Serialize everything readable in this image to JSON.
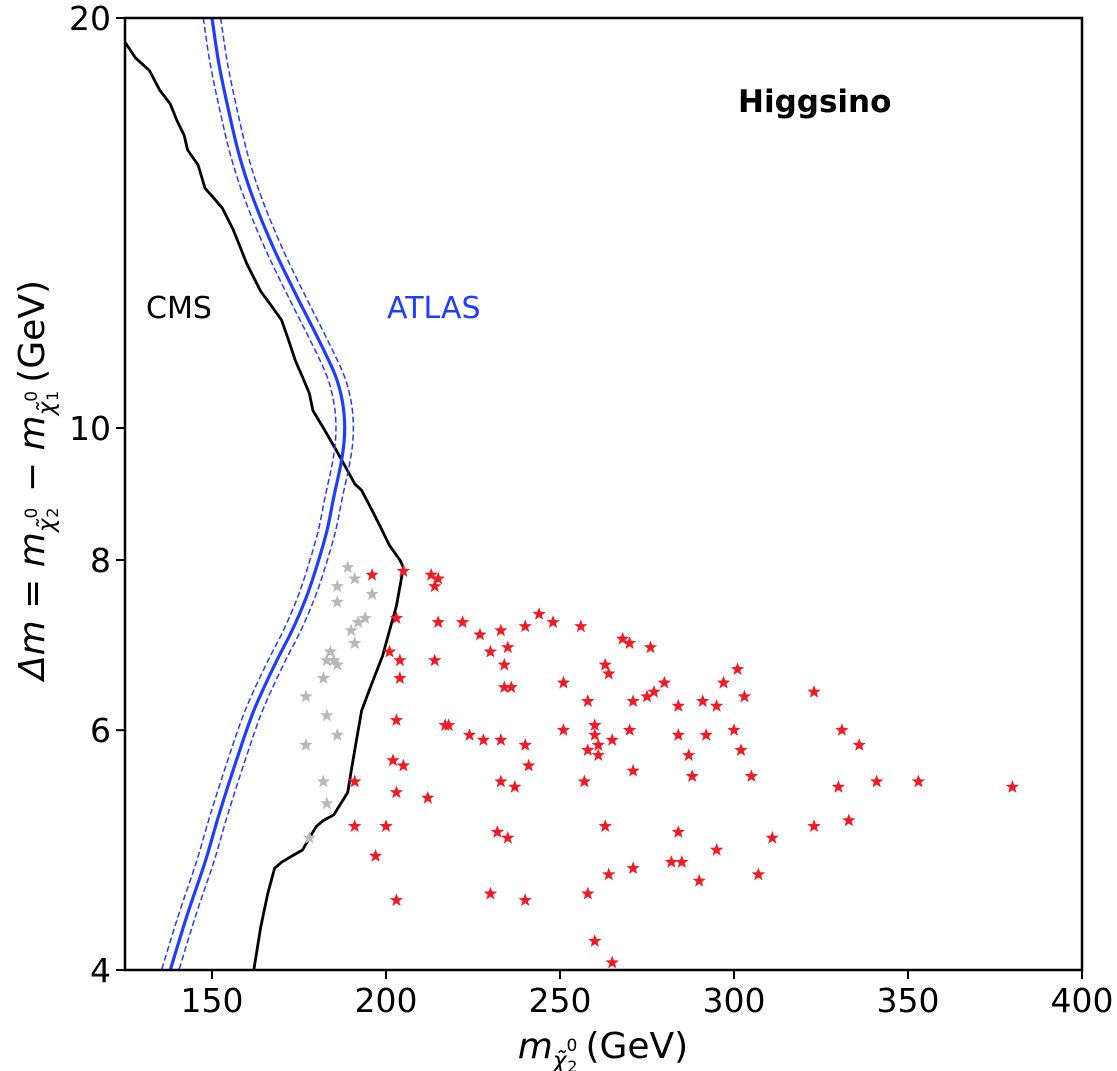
{
  "chart_data": {
    "type": "scatter",
    "title": "",
    "xlabel": {
      "main": "m",
      "sub": "χ̃",
      "sup": "0",
      "subsub": "2",
      "unit": "(GeV)"
    },
    "ylabel": {
      "text": "Δm = m",
      "sub1": "χ̃",
      "sup1": "0",
      "idx1": "2",
      "minus": " − m",
      "sub2": "χ̃",
      "sup2": "0",
      "idx2": "1",
      "unit": "(GeV)"
    },
    "xlim": [
      125,
      400
    ],
    "ylim": [
      4,
      20
    ],
    "yscale": "log",
    "xticks": [
      "150",
      "200",
      "250",
      "300",
      "350",
      "400"
    ],
    "yticks": [
      "4",
      "6",
      "8",
      "10",
      "20"
    ],
    "grid": false,
    "annotations": {
      "higgsino": "Higgsino",
      "cms": "CMS",
      "atlas": "ATLAS"
    },
    "colors": {
      "cms": "#000000",
      "atlas": "#1f3cff",
      "allowed_points": "#ee1c25",
      "excluded_points": "#b8b8b8"
    },
    "series": [
      {
        "name": "CMS",
        "kind": "line",
        "points": [
          [
            125,
            19.2
          ],
          [
            128,
            18.7
          ],
          [
            132,
            18.3
          ],
          [
            135,
            17.7
          ],
          [
            138,
            17.3
          ],
          [
            140,
            16.8
          ],
          [
            142,
            16.4
          ],
          [
            143,
            16.0
          ],
          [
            146,
            15.6
          ],
          [
            148,
            15.0
          ],
          [
            150,
            14.8
          ],
          [
            153,
            14.5
          ],
          [
            156,
            14.0
          ],
          [
            158,
            13.6
          ],
          [
            160,
            13.2
          ],
          [
            164,
            12.6
          ],
          [
            167,
            12.3
          ],
          [
            170,
            12.0
          ],
          [
            172,
            11.6
          ],
          [
            174,
            11.2
          ],
          [
            176,
            10.9
          ],
          [
            178,
            10.6
          ],
          [
            179,
            10.3
          ],
          [
            182,
            10.0
          ],
          [
            185,
            9.7
          ],
          [
            187,
            9.5
          ],
          [
            189,
            9.3
          ],
          [
            191,
            9.1
          ],
          [
            193,
            9.0
          ],
          [
            195,
            8.8
          ],
          [
            197,
            8.6
          ],
          [
            199,
            8.4
          ],
          [
            201,
            8.2
          ],
          [
            204,
            8.0
          ],
          [
            205,
            7.9
          ],
          [
            203,
            7.4
          ],
          [
            201,
            7.1
          ],
          [
            199,
            6.8
          ],
          [
            197,
            6.6
          ],
          [
            195,
            6.4
          ],
          [
            193,
            6.2
          ],
          [
            192,
            6.0
          ],
          [
            191,
            5.8
          ],
          [
            190,
            5.6
          ],
          [
            189,
            5.4
          ],
          [
            187,
            5.3
          ],
          [
            185,
            5.2
          ],
          [
            182,
            5.15
          ],
          [
            180,
            5.1
          ],
          [
            178,
            5.0
          ],
          [
            176,
            4.9
          ],
          [
            173,
            4.85
          ],
          [
            170,
            4.8
          ],
          [
            168,
            4.75
          ],
          [
            166,
            4.55
          ],
          [
            164,
            4.3
          ],
          [
            162,
            4.0
          ]
        ]
      },
      {
        "name": "ATLAS",
        "kind": "curve",
        "points": [
          [
            150,
            20
          ],
          [
            152,
            18.5
          ],
          [
            155,
            17
          ],
          [
            158,
            15.8
          ],
          [
            162,
            14.7
          ],
          [
            168,
            13.5
          ],
          [
            175,
            12.4
          ],
          [
            180,
            11.7
          ],
          [
            185,
            11.0
          ],
          [
            187,
            10.6
          ],
          [
            188,
            10.2
          ],
          [
            188,
            9.8
          ],
          [
            187,
            9.4
          ],
          [
            185,
            8.9
          ],
          [
            183,
            8.4
          ],
          [
            180,
            7.9
          ],
          [
            177,
            7.5
          ],
          [
            173,
            7.1
          ],
          [
            168,
            6.7
          ],
          [
            162,
            6.2
          ],
          [
            157,
            5.7
          ],
          [
            152,
            5.2
          ],
          [
            148,
            4.8
          ],
          [
            143,
            4.4
          ],
          [
            138,
            4.0
          ]
        ],
        "band": 2.5
      },
      {
        "name": "",
        "kind": "scatter",
        "marker": "star",
        "color": "#ee1c25",
        "points": [
          [
            205,
            7.85
          ],
          [
            213,
            7.8
          ],
          [
            215,
            7.75
          ],
          [
            214,
            7.65
          ],
          [
            196,
            7.8
          ],
          [
            203,
            7.25
          ],
          [
            215,
            7.2
          ],
          [
            222,
            7.2
          ],
          [
            227,
            7.05
          ],
          [
            233,
            7.1
          ],
          [
            235,
            6.9
          ],
          [
            240,
            7.15
          ],
          [
            244,
            7.3
          ],
          [
            248,
            7.2
          ],
          [
            256,
            7.15
          ],
          [
            268,
            7.0
          ],
          [
            270,
            6.95
          ],
          [
            276,
            6.9
          ],
          [
            201,
            6.85
          ],
          [
            204,
            6.75
          ],
          [
            214,
            6.75
          ],
          [
            204,
            6.55
          ],
          [
            234,
            6.7
          ],
          [
            230,
            6.85
          ],
          [
            234,
            6.45
          ],
          [
            236,
            6.45
          ],
          [
            251,
            6.5
          ],
          [
            258,
            6.3
          ],
          [
            263,
            6.7
          ],
          [
            264,
            6.6
          ],
          [
            271,
            6.3
          ],
          [
            275,
            6.35
          ],
          [
            277,
            6.4
          ],
          [
            280,
            6.5
          ],
          [
            284,
            6.25
          ],
          [
            291,
            6.3
          ],
          [
            295,
            6.25
          ],
          [
            297,
            6.5
          ],
          [
            301,
            6.65
          ],
          [
            303,
            6.35
          ],
          [
            323,
            6.4
          ],
          [
            203,
            6.1
          ],
          [
            217,
            6.05
          ],
          [
            218,
            6.05
          ],
          [
            224,
            5.95
          ],
          [
            228,
            5.9
          ],
          [
            233,
            5.9
          ],
          [
            240,
            5.85
          ],
          [
            251,
            6.0
          ],
          [
            260,
            6.05
          ],
          [
            260,
            5.95
          ],
          [
            265,
            5.9
          ],
          [
            261,
            5.75
          ],
          [
            258,
            5.8
          ],
          [
            261,
            5.85
          ],
          [
            270,
            6.0
          ],
          [
            284,
            5.95
          ],
          [
            292,
            5.95
          ],
          [
            300,
            6.0
          ],
          [
            302,
            5.8
          ],
          [
            331,
            6.0
          ],
          [
            336,
            5.85
          ],
          [
            202,
            5.7
          ],
          [
            205,
            5.65
          ],
          [
            233,
            5.5
          ],
          [
            237,
            5.45
          ],
          [
            241,
            5.65
          ],
          [
            257,
            5.5
          ],
          [
            271,
            5.6
          ],
          [
            287,
            5.75
          ],
          [
            288,
            5.55
          ],
          [
            305,
            5.55
          ],
          [
            330,
            5.45
          ],
          [
            341,
            5.5
          ],
          [
            353,
            5.5
          ],
          [
            380,
            5.45
          ],
          [
            203,
            5.4
          ],
          [
            212,
            5.35
          ],
          [
            191,
            5.5
          ],
          [
            191,
            5.1
          ],
          [
            200,
            5.1
          ],
          [
            232,
            5.05
          ],
          [
            235,
            5.0
          ],
          [
            263,
            5.1
          ],
          [
            284,
            5.05
          ],
          [
            295,
            4.9
          ],
          [
            311,
            5.0
          ],
          [
            323,
            5.1
          ],
          [
            333,
            5.15
          ],
          [
            197,
            4.85
          ],
          [
            203,
            4.5
          ],
          [
            230,
            4.55
          ],
          [
            240,
            4.5
          ],
          [
            264,
            4.7
          ],
          [
            271,
            4.75
          ],
          [
            282,
            4.8
          ],
          [
            285,
            4.8
          ],
          [
            290,
            4.65
          ],
          [
            307,
            4.7
          ],
          [
            258,
            4.55
          ],
          [
            260,
            4.2
          ],
          [
            265,
            4.05
          ]
        ]
      },
      {
        "name": "",
        "kind": "scatter",
        "marker": "star",
        "color": "#b8b8b8",
        "points": [
          [
            189,
            7.9
          ],
          [
            191,
            7.75
          ],
          [
            186,
            7.65
          ],
          [
            196,
            7.55
          ],
          [
            186,
            7.45
          ],
          [
            194,
            7.25
          ],
          [
            192,
            7.2
          ],
          [
            190,
            7.1
          ],
          [
            191,
            6.95
          ],
          [
            184,
            6.85
          ],
          [
            183,
            6.75
          ],
          [
            185,
            6.75
          ],
          [
            186,
            6.7
          ],
          [
            182,
            6.55
          ],
          [
            177,
            6.35
          ],
          [
            183,
            6.15
          ],
          [
            186,
            5.95
          ],
          [
            177,
            5.85
          ],
          [
            182,
            5.5
          ],
          [
            183,
            5.3
          ],
          [
            178,
            5.0
          ]
        ]
      }
    ]
  }
}
